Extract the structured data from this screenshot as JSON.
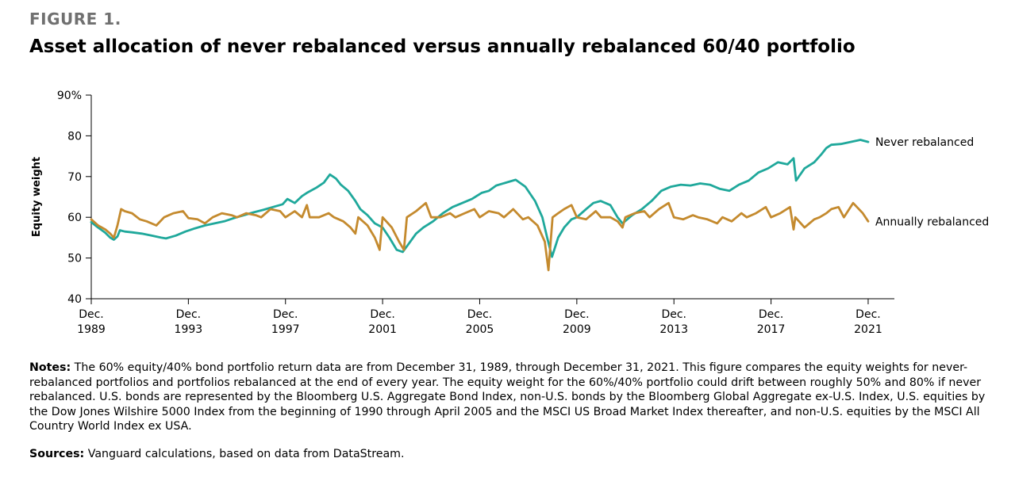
{
  "figure": {
    "label": "FIGURE 1.",
    "title": "Asset allocation of never rebalanced versus annually rebalanced 60/40 portfolio"
  },
  "notes": {
    "heading": "Notes:",
    "text": "The 60% equity/40% bond portfolio return data are from December 31, 1989, through December 31, 2021. This figure compares the equity weights for never-rebalanced portfolios and portfolios rebalanced at the end of every year. The equity weight for the 60%/40% portfolio could drift between roughly 50% and 80% if never rebalanced. U.S. bonds are represented by the Bloomberg U.S. Aggregate Bond Index, non-U.S. bonds by the Bloomberg Global Aggregate ex-U.S. Index, U.S. equities by the Dow Jones Wilshire 5000 Index from the beginning of 1990 through April 2005 and the MSCI US Broad Market Index thereafter, and non-U.S. equities by the MSCI All Country World Index ex USA."
  },
  "sources": {
    "heading": "Sources:",
    "text": "Vanguard calculations, based on data from DataStream."
  },
  "chart_data": {
    "type": "line",
    "ylabel": "Equity weight",
    "xlabel": "",
    "ylim": [
      40,
      90
    ],
    "xlim": [
      1989.92,
      2023.0
    ],
    "yticks": [
      {
        "value": 90,
        "label": "90%"
      },
      {
        "value": 80,
        "label": "80"
      },
      {
        "value": 70,
        "label": "70"
      },
      {
        "value": 60,
        "label": "60"
      },
      {
        "value": 50,
        "label": "50"
      },
      {
        "value": 40,
        "label": "40"
      }
    ],
    "xticks": [
      {
        "value": 1989.92,
        "line1": "Dec.",
        "line2": "1989"
      },
      {
        "value": 1993.92,
        "line1": "Dec.",
        "line2": "1993"
      },
      {
        "value": 1997.92,
        "line1": "Dec.",
        "line2": "1997"
      },
      {
        "value": 2001.92,
        "line1": "Dec.",
        "line2": "2001"
      },
      {
        "value": 2005.92,
        "line1": "Dec.",
        "line2": "2005"
      },
      {
        "value": 2009.92,
        "line1": "Dec.",
        "line2": "2009"
      },
      {
        "value": 2013.92,
        "line1": "Dec.",
        "line2": "2013"
      },
      {
        "value": 2017.92,
        "line1": "Dec.",
        "line2": "2017"
      },
      {
        "value": 2021.92,
        "line1": "Dec.",
        "line2": "2021"
      }
    ],
    "grid": false,
    "series": [
      {
        "name": "Never rebalanced",
        "color": "#1fa89b",
        "x": [
          1989.92,
          1990.2,
          1990.5,
          1990.7,
          1990.85,
          1991.0,
          1991.1,
          1991.3,
          1991.6,
          1992.0,
          1992.4,
          1992.8,
          1993.0,
          1993.4,
          1993.8,
          1994.2,
          1994.6,
          1995.0,
          1995.4,
          1995.8,
          1996.2,
          1996.6,
          1997.0,
          1997.4,
          1997.8,
          1998.0,
          1998.3,
          1998.6,
          1998.8,
          1999.2,
          1999.5,
          1999.75,
          2000.0,
          2000.2,
          2000.5,
          2000.8,
          2001.0,
          2001.3,
          2001.6,
          2001.92,
          2002.2,
          2002.5,
          2002.75,
          2003.0,
          2003.3,
          2003.6,
          2004.0,
          2004.4,
          2004.8,
          2005.2,
          2005.6,
          2006.0,
          2006.3,
          2006.6,
          2007.0,
          2007.4,
          2007.8,
          2008.2,
          2008.5,
          2008.7,
          2008.9,
          2009.15,
          2009.4,
          2009.7,
          2009.92,
          2010.3,
          2010.6,
          2010.9,
          2011.3,
          2011.6,
          2011.8,
          2012.2,
          2012.6,
          2013.0,
          2013.4,
          2013.8,
          2014.2,
          2014.6,
          2015.0,
          2015.4,
          2015.8,
          2016.2,
          2016.6,
          2017.0,
          2017.4,
          2017.8,
          2018.2,
          2018.6,
          2018.85,
          2018.95,
          2019.3,
          2019.7,
          2020.0,
          2020.2,
          2020.4,
          2020.8,
          2021.2,
          2021.6,
          2021.92
        ],
        "values": [
          58.8,
          57.5,
          56.2,
          55.0,
          54.5,
          55.3,
          56.8,
          56.5,
          56.3,
          56.0,
          55.5,
          55.0,
          54.8,
          55.5,
          56.5,
          57.3,
          58.0,
          58.5,
          59.0,
          59.8,
          60.5,
          61.2,
          61.8,
          62.5,
          63.2,
          64.5,
          63.5,
          65.2,
          66.0,
          67.3,
          68.5,
          70.5,
          69.5,
          68.0,
          66.5,
          64.0,
          62.0,
          60.5,
          58.5,
          57.5,
          55.0,
          52.0,
          51.5,
          53.5,
          56.0,
          57.5,
          59.0,
          61.0,
          62.5,
          63.5,
          64.5,
          66.0,
          66.5,
          67.8,
          68.5,
          69.2,
          67.5,
          64.0,
          60.0,
          55.0,
          50.3,
          55.0,
          57.5,
          59.5,
          60.0,
          62.0,
          63.5,
          64.0,
          63.0,
          60.0,
          58.5,
          60.5,
          62.0,
          64.0,
          66.5,
          67.5,
          68.0,
          67.8,
          68.3,
          68.0,
          67.0,
          66.5,
          68.0,
          69.0,
          71.0,
          72.0,
          73.5,
          73.0,
          74.5,
          69.0,
          72.0,
          73.5,
          75.5,
          77.0,
          77.8,
          78.0,
          78.5,
          79.0,
          78.5
        ]
      },
      {
        "name": "Annually rebalanced",
        "color": "#c48a2e",
        "x": [
          1989.92,
          1990.2,
          1990.5,
          1990.7,
          1990.85,
          1991.0,
          1991.15,
          1991.3,
          1991.6,
          1991.92,
          1992.2,
          1992.6,
          1992.92,
          1993.3,
          1993.7,
          1993.92,
          1994.3,
          1994.6,
          1994.92,
          1995.3,
          1995.7,
          1995.92,
          1996.3,
          1996.7,
          1996.92,
          1997.3,
          1997.7,
          1997.92,
          1998.3,
          1998.6,
          1998.8,
          1998.92,
          1999.3,
          1999.7,
          1999.92,
          2000.3,
          2000.6,
          2000.8,
          2000.92,
          2001.3,
          2001.6,
          2001.8,
          2001.92,
          2002.3,
          2002.6,
          2002.8,
          2002.92,
          2003.3,
          2003.7,
          2003.92,
          2004.3,
          2004.7,
          2004.92,
          2005.3,
          2005.7,
          2005.92,
          2006.3,
          2006.7,
          2006.92,
          2007.3,
          2007.7,
          2007.92,
          2008.3,
          2008.6,
          2008.75,
          2008.92,
          2009.15,
          2009.4,
          2009.7,
          2009.92,
          2010.3,
          2010.7,
          2010.92,
          2011.3,
          2011.6,
          2011.8,
          2011.92,
          2012.3,
          2012.7,
          2012.92,
          2013.3,
          2013.7,
          2013.92,
          2014.3,
          2014.7,
          2014.92,
          2015.3,
          2015.7,
          2015.92,
          2016.3,
          2016.7,
          2016.92,
          2017.3,
          2017.7,
          2017.92,
          2018.3,
          2018.7,
          2018.85,
          2018.92,
          2019.3,
          2019.7,
          2019.92,
          2020.2,
          2020.4,
          2020.7,
          2020.92,
          2021.3,
          2021.7,
          2021.92
        ],
        "values": [
          59.5,
          58.0,
          57.0,
          56.0,
          55.0,
          58.0,
          62.0,
          61.5,
          61.0,
          59.5,
          59.0,
          58.0,
          60.0,
          61.0,
          61.5,
          59.8,
          59.5,
          58.5,
          60.0,
          61.0,
          60.5,
          60.0,
          61.0,
          60.5,
          60.0,
          62.0,
          61.5,
          60.0,
          61.5,
          60.0,
          63.0,
          60.0,
          60.0,
          61.0,
          60.0,
          59.0,
          57.5,
          56.0,
          60.0,
          58.0,
          55.0,
          52.0,
          60.0,
          57.5,
          54.0,
          52.0,
          60.0,
          61.5,
          63.5,
          60.0,
          60.0,
          61.0,
          60.0,
          61.0,
          62.0,
          60.0,
          61.5,
          61.0,
          60.0,
          62.0,
          59.5,
          60.0,
          58.0,
          54.0,
          47.0,
          60.0,
          61.0,
          62.0,
          63.0,
          60.0,
          59.5,
          61.5,
          60.0,
          60.0,
          59.0,
          57.5,
          60.0,
          61.0,
          61.5,
          60.0,
          62.0,
          63.5,
          60.0,
          59.5,
          60.5,
          60.0,
          59.5,
          58.5,
          60.0,
          59.0,
          61.0,
          60.0,
          61.0,
          62.5,
          60.0,
          61.0,
          62.5,
          57.0,
          60.0,
          57.5,
          59.5,
          60.0,
          61.0,
          62.0,
          62.5,
          60.0,
          63.5,
          61.0,
          59.0
        ]
      }
    ],
    "annotations": [
      {
        "text": "Never rebalanced",
        "series": 0
      },
      {
        "text": "Annually rebalanced",
        "series": 1
      }
    ]
  }
}
